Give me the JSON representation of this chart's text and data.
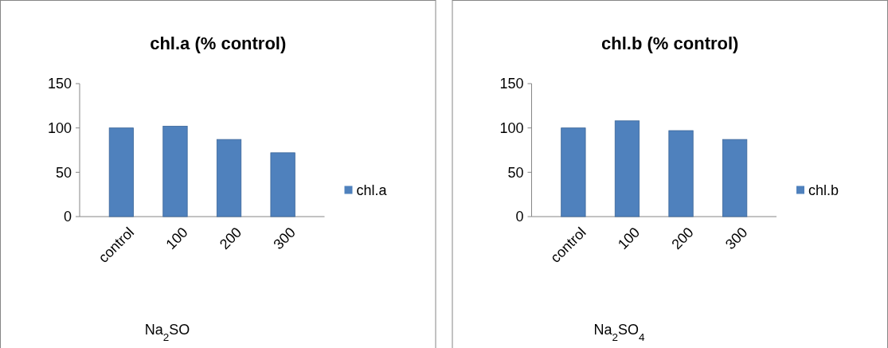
{
  "chart_data": [
    {
      "type": "bar",
      "title": "chl.a (% control)",
      "xlabel": "Na$_{2}$SO",
      "categories": [
        "control",
        "100",
        "200",
        "300"
      ],
      "series": [
        {
          "name": "chl.a",
          "color": "#4f81bd",
          "values": [
            100,
            102,
            87,
            72
          ]
        }
      ],
      "ylim": [
        0,
        150
      ],
      "yticks": [
        0,
        50,
        100,
        150
      ],
      "legend": "right",
      "grid": false
    },
    {
      "type": "bar",
      "title": "chl.b (% control)",
      "xlabel": "Na$_{2}$SO$_{4}$",
      "categories": [
        "control",
        "100",
        "200",
        "300"
      ],
      "series": [
        {
          "name": "chl.b",
          "color": "#4f81bd",
          "values": [
            100,
            108,
            97,
            87
          ]
        }
      ],
      "ylim": [
        0,
        150
      ],
      "yticks": [
        0,
        50,
        100,
        150
      ],
      "legend": "right",
      "grid": false
    }
  ]
}
